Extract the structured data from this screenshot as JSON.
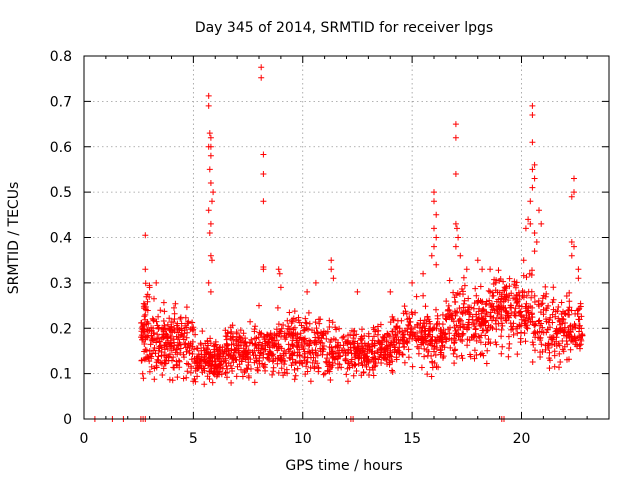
{
  "chart_data": {
    "type": "scatter",
    "title": "Day 345 of 2014, SRMTID for receiver lpgs",
    "xlabel": "GPS time / hours",
    "ylabel": "SRMTID / TECUs",
    "xlim": [
      0,
      24
    ],
    "ylim": [
      0,
      0.8
    ],
    "xticks": [
      0,
      5,
      10,
      15,
      20
    ],
    "yticks": [
      0,
      0.1,
      0.2,
      0.3,
      0.4,
      0.5,
      0.6,
      0.7,
      0.8
    ],
    "xtick_labels": [
      "0",
      "5",
      "10",
      "15",
      "20"
    ],
    "ytick_labels": [
      "0",
      "0.1",
      "0.2",
      "0.3",
      "0.4",
      "0.5",
      "0.6",
      "0.7",
      "0.8"
    ],
    "grid": true,
    "marker": "plus",
    "series_color": "#ff0000",
    "zero_points": [
      0.5,
      1.3,
      1.8,
      2.6,
      2.7,
      2.8,
      12.2,
      12.3,
      19.1,
      19.2
    ],
    "bands": [
      {
        "x_start": 2.6,
        "x_end": 3.0,
        "center": 0.2,
        "spread": 0.09,
        "count": 60
      },
      {
        "x_start": 3.0,
        "x_end": 5.0,
        "center": 0.17,
        "spread": 0.07,
        "count": 220
      },
      {
        "x_start": 5.0,
        "x_end": 6.5,
        "center": 0.13,
        "spread": 0.05,
        "count": 160
      },
      {
        "x_start": 6.5,
        "x_end": 8.5,
        "center": 0.15,
        "spread": 0.05,
        "count": 200
      },
      {
        "x_start": 8.5,
        "x_end": 11.0,
        "center": 0.16,
        "spread": 0.06,
        "count": 240
      },
      {
        "x_start": 11.0,
        "x_end": 14.0,
        "center": 0.15,
        "spread": 0.05,
        "count": 280
      },
      {
        "x_start": 14.0,
        "x_end": 16.5,
        "center": 0.18,
        "spread": 0.06,
        "count": 230
      },
      {
        "x_start": 16.5,
        "x_end": 18.5,
        "center": 0.21,
        "spread": 0.07,
        "count": 200
      },
      {
        "x_start": 18.5,
        "x_end": 20.5,
        "center": 0.24,
        "spread": 0.07,
        "count": 200
      },
      {
        "x_start": 20.5,
        "x_end": 22.8,
        "center": 0.2,
        "spread": 0.07,
        "count": 200
      }
    ],
    "outliers": [
      [
        2.8,
        0.405
      ],
      [
        2.8,
        0.33
      ],
      [
        3.3,
        0.3
      ],
      [
        3.0,
        0.29
      ],
      [
        5.7,
        0.712
      ],
      [
        5.7,
        0.69
      ],
      [
        5.75,
        0.63
      ],
      [
        5.8,
        0.62
      ],
      [
        5.7,
        0.6
      ],
      [
        5.8,
        0.6
      ],
      [
        5.8,
        0.58
      ],
      [
        5.75,
        0.55
      ],
      [
        5.8,
        0.52
      ],
      [
        5.9,
        0.5
      ],
      [
        5.85,
        0.48
      ],
      [
        5.7,
        0.46
      ],
      [
        5.8,
        0.43
      ],
      [
        5.75,
        0.41
      ],
      [
        5.8,
        0.36
      ],
      [
        5.85,
        0.35
      ],
      [
        5.7,
        0.3
      ],
      [
        5.8,
        0.28
      ],
      [
        8.1,
        0.775
      ],
      [
        8.1,
        0.752
      ],
      [
        8.2,
        0.583
      ],
      [
        8.2,
        0.54
      ],
      [
        8.2,
        0.48
      ],
      [
        8.2,
        0.335
      ],
      [
        8.2,
        0.33
      ],
      [
        8.0,
        0.25
      ],
      [
        8.9,
        0.33
      ],
      [
        8.95,
        0.32
      ],
      [
        9.0,
        0.29
      ],
      [
        11.3,
        0.35
      ],
      [
        11.3,
        0.33
      ],
      [
        11.4,
        0.31
      ],
      [
        10.6,
        0.3
      ],
      [
        10.2,
        0.28
      ],
      [
        14.0,
        0.28
      ],
      [
        12.5,
        0.28
      ],
      [
        15.0,
        0.3
      ],
      [
        15.5,
        0.32
      ],
      [
        16.0,
        0.5
      ],
      [
        16.0,
        0.48
      ],
      [
        16.1,
        0.45
      ],
      [
        16.0,
        0.42
      ],
      [
        16.1,
        0.4
      ],
      [
        16.0,
        0.38
      ],
      [
        15.9,
        0.36
      ],
      [
        16.1,
        0.34
      ],
      [
        17.0,
        0.65
      ],
      [
        17.0,
        0.62
      ],
      [
        17.0,
        0.54
      ],
      [
        17.0,
        0.43
      ],
      [
        17.05,
        0.42
      ],
      [
        17.1,
        0.4
      ],
      [
        17.0,
        0.38
      ],
      [
        17.2,
        0.36
      ],
      [
        18.2,
        0.33
      ],
      [
        18.0,
        0.35
      ],
      [
        17.5,
        0.33
      ],
      [
        20.5,
        0.69
      ],
      [
        20.5,
        0.67
      ],
      [
        20.5,
        0.61
      ],
      [
        20.6,
        0.56
      ],
      [
        20.5,
        0.55
      ],
      [
        20.6,
        0.53
      ],
      [
        20.5,
        0.51
      ],
      [
        20.4,
        0.48
      ],
      [
        20.3,
        0.44
      ],
      [
        20.4,
        0.43
      ],
      [
        20.2,
        0.42
      ],
      [
        20.6,
        0.41
      ],
      [
        20.8,
        0.46
      ],
      [
        20.9,
        0.43
      ],
      [
        20.7,
        0.39
      ],
      [
        20.6,
        0.37
      ],
      [
        20.1,
        0.35
      ],
      [
        22.4,
        0.53
      ],
      [
        22.4,
        0.5
      ],
      [
        22.3,
        0.49
      ],
      [
        22.3,
        0.39
      ],
      [
        22.4,
        0.38
      ],
      [
        22.3,
        0.36
      ],
      [
        22.6,
        0.33
      ],
      [
        22.6,
        0.31
      ]
    ]
  }
}
